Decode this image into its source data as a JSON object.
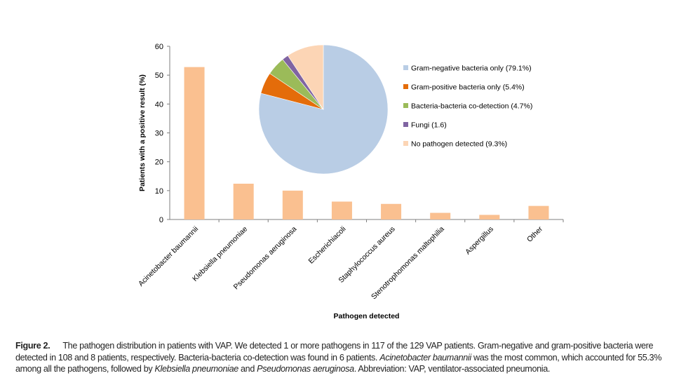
{
  "chart_data": [
    {
      "type": "bar",
      "title": "",
      "xlabel": "Pathogen detected",
      "ylabel": "Patients with a positive result (%)",
      "ylim": [
        0,
        60
      ],
      "yticks": [
        "0",
        "10",
        "20",
        "30",
        "40",
        "50",
        "60"
      ],
      "grid": false,
      "categories": [
        "Acinetobacter baumannii",
        "Klebsiella pneumoniae",
        "Pseudomonas aeruginosa",
        "Escherichiacoli",
        "Staphylococcus aureus",
        "Stenotrophomonas maltophilia",
        "Aspergillus",
        "Other"
      ],
      "values": [
        52.8,
        12.4,
        10.0,
        6.2,
        5.4,
        2.3,
        1.6,
        4.7
      ],
      "color": "#fac090"
    },
    {
      "type": "pie",
      "legend_position": "right",
      "slices": [
        {
          "label": "Gram-negative bacteria only (79.1%)",
          "value": 79.1,
          "color": "#b9cde5"
        },
        {
          "label": "Gram-positive bacteria only (5.4%)",
          "value": 5.4,
          "color": "#e46c0a"
        },
        {
          "label": "Bacteria-bacteria co-detection (4.7%)",
          "value": 4.7,
          "color": "#9bbb59"
        },
        {
          "label": "Fungi (1.6)",
          "value": 1.6,
          "color": "#8064a2"
        },
        {
          "label": "No pathogen detected (9.3%)",
          "value": 9.3,
          "color": "#fcd5b5"
        }
      ]
    }
  ],
  "caption": {
    "label": "Figure 2.",
    "t1": "The pathogen distribution in patients with VAP. We detected 1 or more pathogens in 117 of the 129 VAP patients. Gram-negative and gram-positive bacteria were detected in 108 and 8 patients, respectively. Bacteria-bacteria co-detection was found in 6 patients. ",
    "i1": "Acinetobacter baumannii",
    "t2": " was the most common, which accounted for 55.3% among all the pathogens, followed by ",
    "i2": "Klebsiella pneumoniae",
    "t3": " and ",
    "i3": "Pseudomonas aeruginosa",
    "t4": ". Abbreviation: VAP, ventilator-associated pneumonia."
  }
}
